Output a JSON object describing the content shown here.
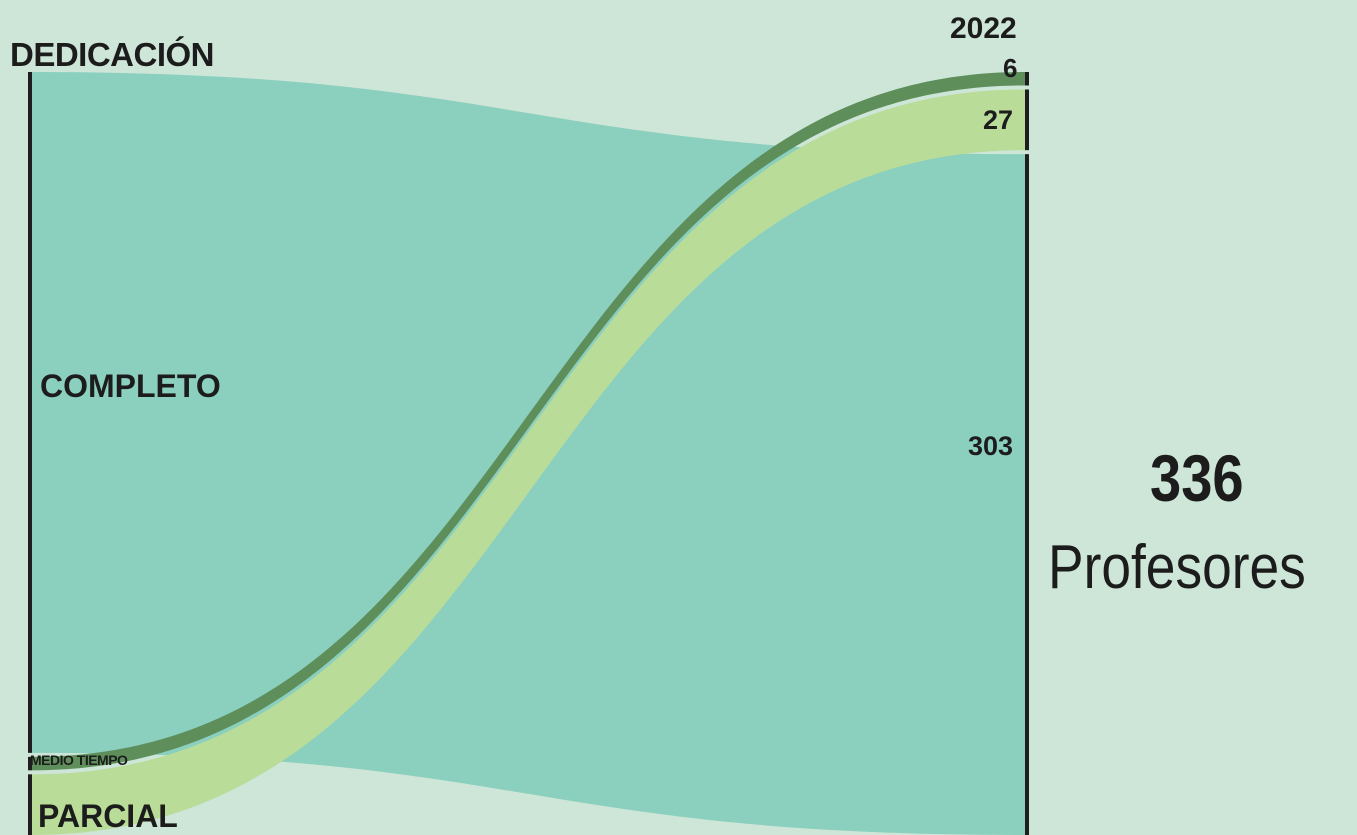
{
  "chart_data": {
    "type": "sankey",
    "left_axis_title": "DEDICACIÓN",
    "right_axis_title": "2022",
    "left_nodes": [
      {
        "label": "COMPLETO",
        "value": 303,
        "color": "#87cebd"
      },
      {
        "label": "MEDIO TIEMPO",
        "value": 6,
        "color": "#5e8f5b"
      },
      {
        "label": "PARCIAL",
        "value": 27,
        "color": "#b9dc99"
      }
    ],
    "right_values": [
      {
        "source": "MEDIO TIEMPO",
        "value": "6"
      },
      {
        "source": "PARCIAL",
        "value": "27"
      },
      {
        "source": "COMPLETO",
        "value": "303"
      }
    ],
    "total": {
      "value": "336",
      "label": "Profesores"
    }
  },
  "colors": {
    "background": "#cde6d8",
    "completo": "#87cebd",
    "medio_tiempo": "#5e8f5b",
    "parcial": "#b9dc99",
    "axis": "#1e1e1e"
  }
}
